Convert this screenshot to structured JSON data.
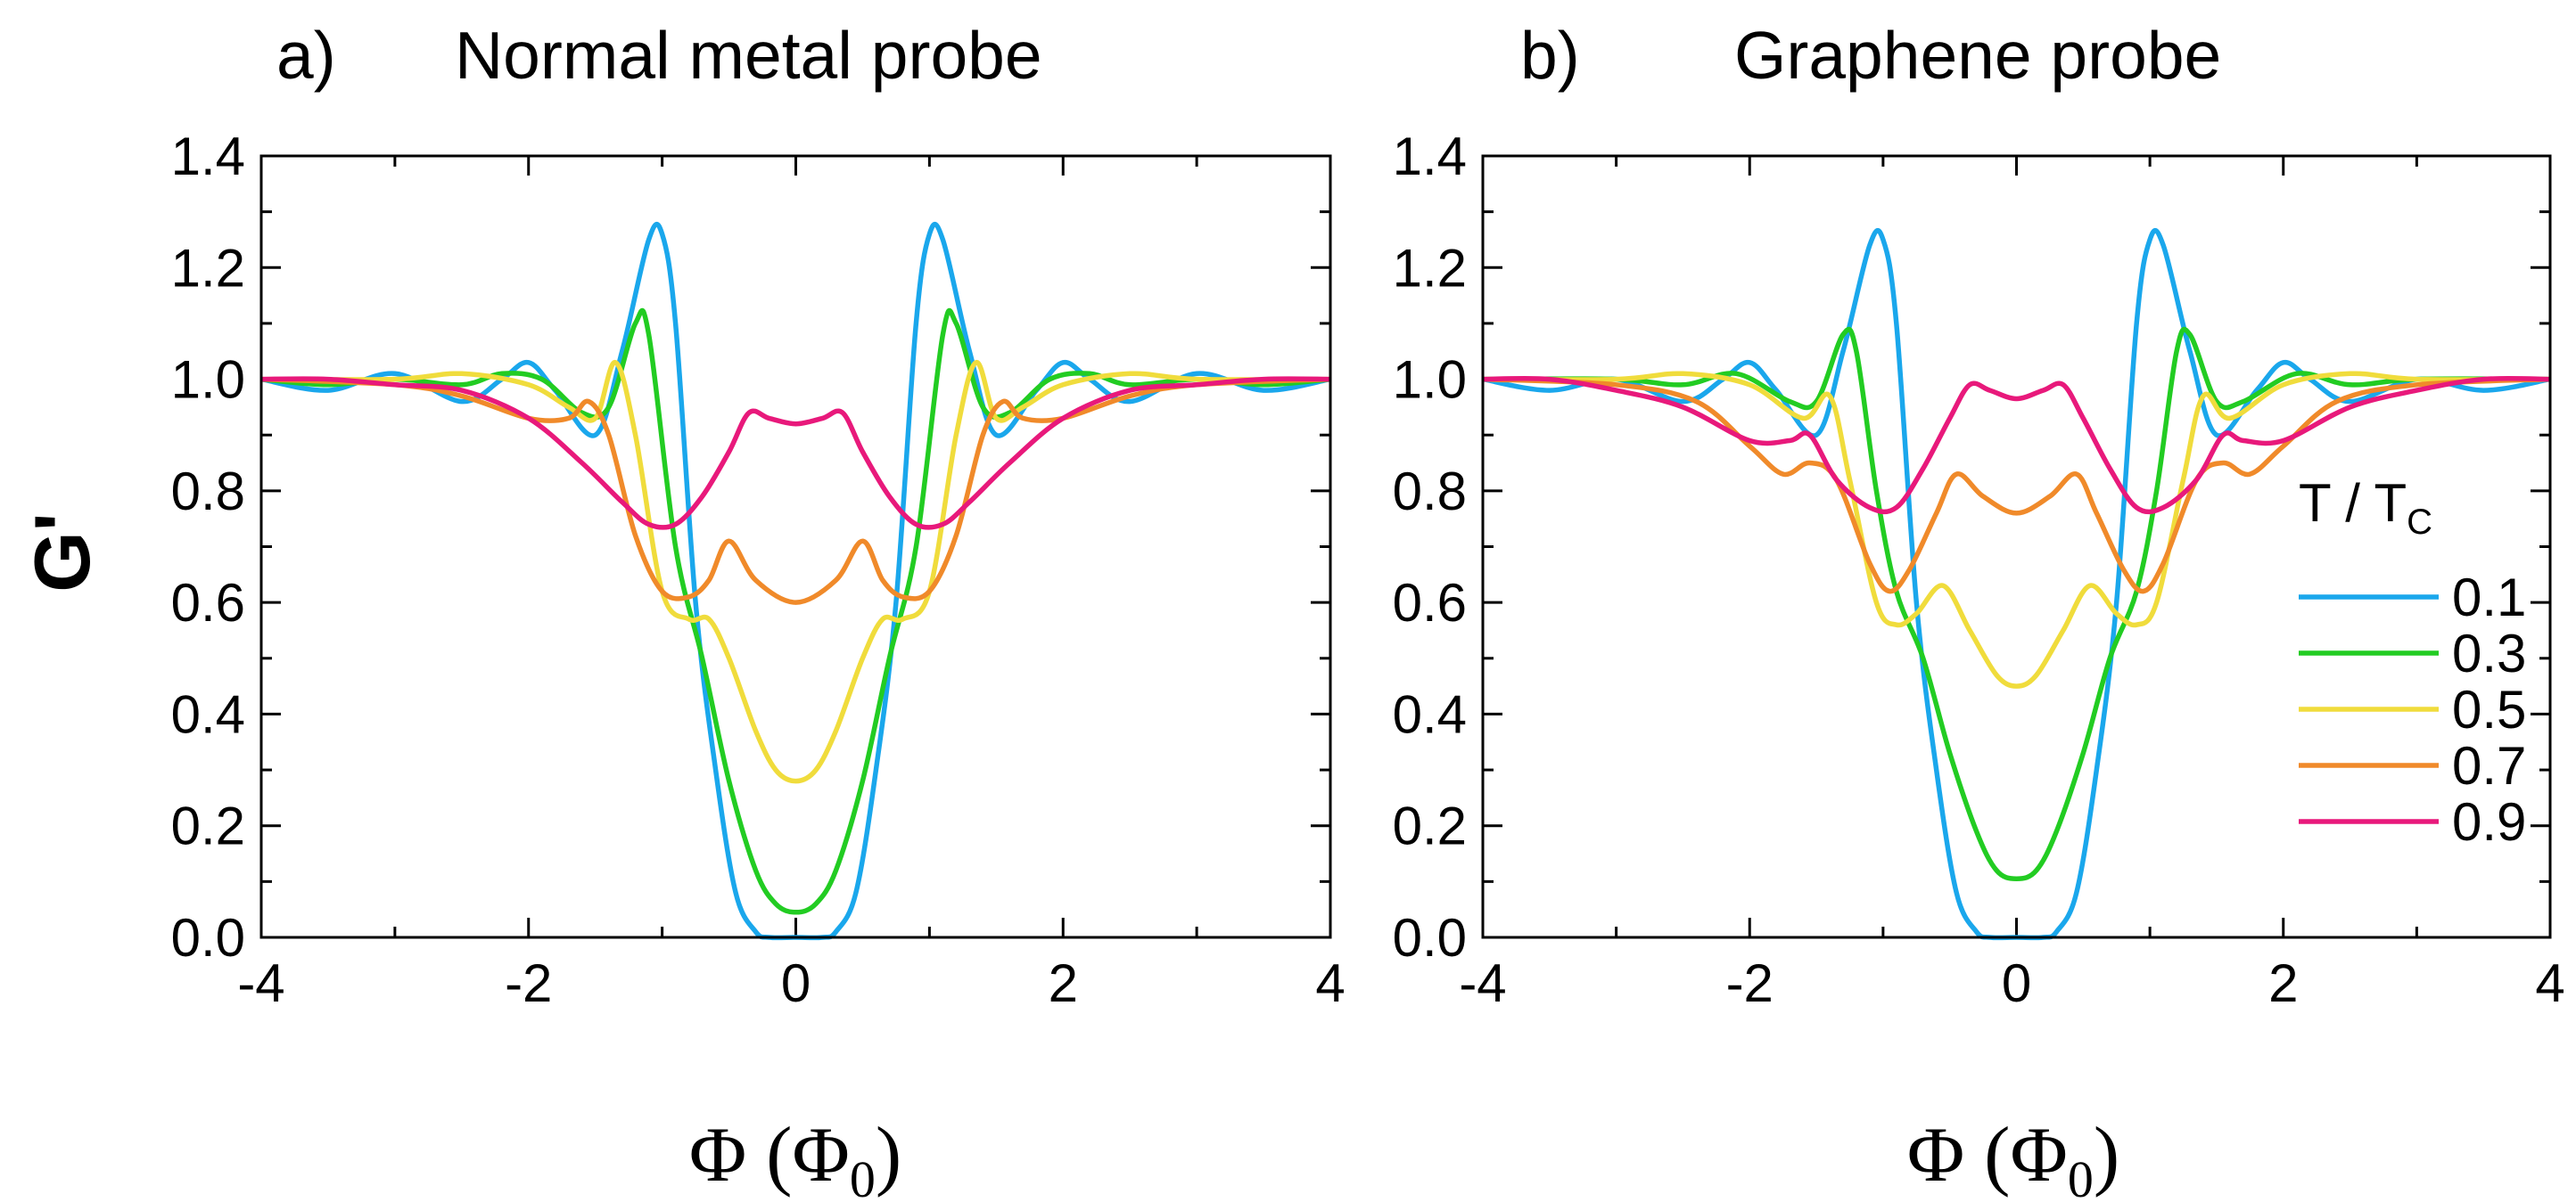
{
  "chart_data": [
    {
      "type": "line",
      "panel": "a)",
      "title": "Normal metal probe",
      "xlabel": "Φ (Φ0)",
      "xlabel_main": "Φ (Φ",
      "xlabel_sub": "0",
      "xlabel_close": ")",
      "ylabel": "G'",
      "xlim": [
        -4,
        4
      ],
      "ylim": [
        0,
        1.4
      ],
      "xticks": [
        "-4",
        "-2",
        "0",
        "2",
        "4"
      ],
      "yticks": [
        "0.0",
        "0.2",
        "0.4",
        "0.6",
        "0.8",
        "1.0",
        "1.2",
        "1.4"
      ],
      "series": [
        {
          "name": "0.1",
          "color": "#1aa7ec",
          "x": [
            -4,
            -3.5,
            -3.0,
            -2.5,
            -2.2,
            -2.0,
            -1.8,
            -1.5,
            -1.3,
            -1.1,
            -1.0,
            -0.9,
            -0.75,
            -0.6,
            -0.45,
            -0.3,
            -0.2,
            0,
            0.2,
            0.3,
            0.45,
            0.6,
            0.75,
            0.9,
            1.0,
            1.1,
            1.3,
            1.5,
            1.8,
            2.0,
            2.2,
            2.5,
            3.0,
            3.5,
            4
          ],
          "y": [
            1.0,
            0.98,
            1.01,
            0.96,
            1.0,
            1.03,
            0.98,
            0.9,
            1.05,
            1.25,
            1.26,
            1.1,
            0.6,
            0.3,
            0.08,
            0.01,
            0.0,
            0.0,
            0.0,
            0.01,
            0.08,
            0.3,
            0.6,
            1.1,
            1.26,
            1.25,
            1.05,
            0.9,
            0.98,
            1.03,
            1.0,
            0.96,
            1.01,
            0.98,
            1.0
          ]
        },
        {
          "name": "0.3",
          "color": "#22cc22",
          "x": [
            -4,
            -3.5,
            -3.0,
            -2.5,
            -2.2,
            -1.9,
            -1.6,
            -1.4,
            -1.2,
            -1.1,
            -0.9,
            -0.7,
            -0.5,
            -0.3,
            -0.15,
            0,
            0.15,
            0.3,
            0.5,
            0.7,
            0.9,
            1.1,
            1.2,
            1.4,
            1.6,
            1.9,
            2.2,
            2.5,
            3.0,
            3.5,
            4
          ],
          "y": [
            1.0,
            0.99,
            1.0,
            0.99,
            1.01,
            1.0,
            0.94,
            0.95,
            1.1,
            1.08,
            0.7,
            0.5,
            0.28,
            0.12,
            0.06,
            0.045,
            0.06,
            0.12,
            0.28,
            0.5,
            0.7,
            1.08,
            1.1,
            0.95,
            0.94,
            1.0,
            1.01,
            0.99,
            1.0,
            0.99,
            1.0
          ]
        },
        {
          "name": "0.5",
          "color": "#f0dc3c",
          "x": [
            -4,
            -3.0,
            -2.5,
            -2.0,
            -1.7,
            -1.5,
            -1.35,
            -1.2,
            -1.0,
            -0.8,
            -0.65,
            -0.5,
            -0.3,
            -0.15,
            0,
            0.15,
            0.3,
            0.5,
            0.65,
            0.8,
            1.0,
            1.2,
            1.35,
            1.5,
            1.7,
            2.0,
            2.5,
            3.0,
            4
          ],
          "y": [
            1.0,
            1.0,
            1.01,
            0.99,
            0.95,
            0.93,
            1.03,
            0.9,
            0.62,
            0.57,
            0.57,
            0.5,
            0.37,
            0.3,
            0.28,
            0.3,
            0.37,
            0.5,
            0.57,
            0.57,
            0.62,
            0.9,
            1.03,
            0.93,
            0.95,
            0.99,
            1.01,
            1.0,
            1.0
          ]
        },
        {
          "name": "0.7",
          "color": "#f08a2a",
          "x": [
            -4,
            -3.0,
            -2.5,
            -2.0,
            -1.7,
            -1.55,
            -1.4,
            -1.2,
            -1.0,
            -0.8,
            -0.65,
            -0.5,
            -0.3,
            0,
            0.3,
            0.5,
            0.65,
            0.8,
            1.0,
            1.2,
            1.4,
            1.55,
            1.7,
            2.0,
            2.5,
            3.0,
            4
          ],
          "y": [
            1.0,
            0.99,
            0.97,
            0.93,
            0.93,
            0.96,
            0.9,
            0.72,
            0.62,
            0.61,
            0.64,
            0.71,
            0.64,
            0.6,
            0.64,
            0.71,
            0.64,
            0.61,
            0.62,
            0.72,
            0.9,
            0.96,
            0.93,
            0.93,
            0.97,
            0.99,
            1.0
          ]
        },
        {
          "name": "0.9",
          "color": "#e8197b",
          "x": [
            -4,
            -3.5,
            -3.0,
            -2.5,
            -2.0,
            -1.6,
            -1.3,
            -1.1,
            -0.9,
            -0.7,
            -0.5,
            -0.35,
            -0.2,
            0,
            0.2,
            0.35,
            0.5,
            0.7,
            0.9,
            1.1,
            1.3,
            1.6,
            2.0,
            2.5,
            3.0,
            3.5,
            4
          ],
          "y": [
            1.0,
            1.0,
            0.99,
            0.98,
            0.93,
            0.85,
            0.78,
            0.74,
            0.74,
            0.79,
            0.87,
            0.94,
            0.93,
            0.92,
            0.93,
            0.94,
            0.87,
            0.79,
            0.74,
            0.74,
            0.78,
            0.85,
            0.93,
            0.98,
            0.99,
            1.0,
            1.0
          ]
        }
      ]
    },
    {
      "type": "line",
      "panel": "b)",
      "title": "Graphene probe",
      "xlabel": "Φ (Φ0)",
      "xlabel_main": "Φ (Φ",
      "xlabel_sub": "0",
      "xlabel_close": ")",
      "xlim": [
        -4,
        4
      ],
      "ylim": [
        0,
        1.4
      ],
      "xticks": [
        "-4",
        "-2",
        "0",
        "2",
        "4"
      ],
      "yticks": [
        "0.0",
        "0.2",
        "0.4",
        "0.6",
        "0.8",
        "1.0",
        "1.2",
        "1.4"
      ],
      "legend": {
        "title": "T / T",
        "title_sub": "C",
        "placement": "right"
      },
      "series": [
        {
          "name": "0.1",
          "color": "#1aa7ec",
          "x": [
            -4,
            -3.5,
            -3.0,
            -2.5,
            -2.2,
            -2.0,
            -1.8,
            -1.5,
            -1.3,
            -1.1,
            -1.0,
            -0.9,
            -0.75,
            -0.6,
            -0.45,
            -0.3,
            -0.2,
            0,
            0.2,
            0.3,
            0.45,
            0.6,
            0.75,
            0.9,
            1.0,
            1.1,
            1.3,
            1.5,
            1.8,
            2.0,
            2.2,
            2.5,
            3.0,
            3.5,
            4
          ],
          "y": [
            1.0,
            0.98,
            1.0,
            0.96,
            1.0,
            1.03,
            0.98,
            0.9,
            1.05,
            1.24,
            1.25,
            1.1,
            0.6,
            0.3,
            0.08,
            0.01,
            0.0,
            0.0,
            0.0,
            0.01,
            0.08,
            0.3,
            0.6,
            1.1,
            1.25,
            1.24,
            1.05,
            0.9,
            0.98,
            1.03,
            1.0,
            0.96,
            1.0,
            0.98,
            1.0
          ]
        },
        {
          "name": "0.3",
          "color": "#22cc22",
          "x": [
            -4,
            -3.0,
            -2.5,
            -2.1,
            -1.7,
            -1.5,
            -1.3,
            -1.2,
            -1.05,
            -0.9,
            -0.7,
            -0.5,
            -0.3,
            -0.15,
            0,
            0.15,
            0.3,
            0.5,
            0.7,
            0.9,
            1.05,
            1.2,
            1.3,
            1.5,
            1.7,
            2.1,
            2.5,
            3.0,
            4
          ],
          "y": [
            1.0,
            1.0,
            0.99,
            1.01,
            0.96,
            0.96,
            1.08,
            1.05,
            0.8,
            0.62,
            0.5,
            0.33,
            0.19,
            0.12,
            0.105,
            0.12,
            0.19,
            0.33,
            0.5,
            0.62,
            0.8,
            1.05,
            1.08,
            0.96,
            0.96,
            1.01,
            0.99,
            1.0,
            1.0
          ]
        },
        {
          "name": "0.5",
          "color": "#f0dc3c",
          "x": [
            -4,
            -3.0,
            -2.5,
            -2.0,
            -1.6,
            -1.4,
            -1.25,
            -1.05,
            -0.9,
            -0.75,
            -0.55,
            -0.35,
            -0.15,
            0,
            0.15,
            0.35,
            0.55,
            0.75,
            0.9,
            1.05,
            1.25,
            1.4,
            1.6,
            2.0,
            2.5,
            3.0,
            4
          ],
          "y": [
            1.0,
            1.0,
            1.01,
            0.99,
            0.93,
            0.97,
            0.82,
            0.6,
            0.56,
            0.58,
            0.63,
            0.55,
            0.47,
            0.45,
            0.47,
            0.55,
            0.63,
            0.58,
            0.56,
            0.6,
            0.82,
            0.97,
            0.93,
            0.99,
            1.01,
            1.0,
            1.0
          ]
        },
        {
          "name": "0.7",
          "color": "#f08a2a",
          "x": [
            -4,
            -3.0,
            -2.4,
            -2.0,
            -1.75,
            -1.55,
            -1.35,
            -1.1,
            -0.95,
            -0.8,
            -0.6,
            -0.45,
            -0.25,
            0,
            0.25,
            0.45,
            0.6,
            0.8,
            0.95,
            1.1,
            1.35,
            1.55,
            1.75,
            2.0,
            2.4,
            3.0,
            4
          ],
          "y": [
            1.0,
            0.99,
            0.96,
            0.88,
            0.83,
            0.85,
            0.82,
            0.67,
            0.62,
            0.66,
            0.76,
            0.83,
            0.79,
            0.76,
            0.79,
            0.83,
            0.76,
            0.66,
            0.62,
            0.67,
            0.82,
            0.85,
            0.83,
            0.88,
            0.96,
            0.99,
            1.0
          ]
        },
        {
          "name": "0.9",
          "color": "#e8197b",
          "x": [
            -4,
            -3.5,
            -3.0,
            -2.5,
            -2.0,
            -1.7,
            -1.55,
            -1.35,
            -1.1,
            -0.9,
            -0.7,
            -0.5,
            -0.35,
            -0.2,
            0,
            0.2,
            0.35,
            0.5,
            0.7,
            0.9,
            1.1,
            1.35,
            1.55,
            1.7,
            2.0,
            2.5,
            3.0,
            3.5,
            4
          ],
          "y": [
            1.0,
            1.0,
            0.98,
            0.95,
            0.89,
            0.89,
            0.9,
            0.82,
            0.77,
            0.77,
            0.84,
            0.93,
            0.99,
            0.98,
            0.965,
            0.98,
            0.99,
            0.93,
            0.84,
            0.77,
            0.77,
            0.82,
            0.9,
            0.89,
            0.89,
            0.95,
            0.98,
            1.0,
            1.0
          ]
        }
      ]
    }
  ]
}
